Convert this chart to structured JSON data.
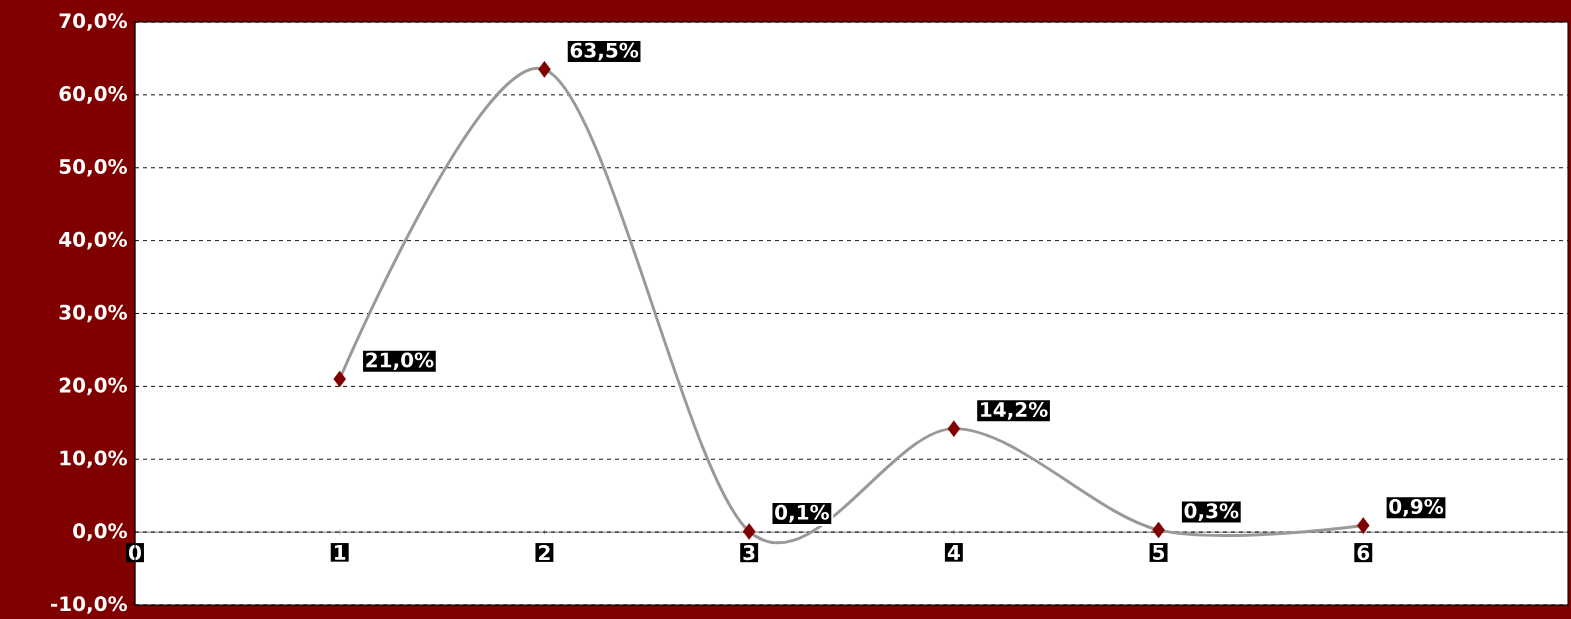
{
  "chart_data": {
    "type": "line",
    "x": [
      1,
      2,
      3,
      4,
      5,
      6
    ],
    "series": [
      {
        "color": "#999999",
        "colors": [
          "#800000",
          "#800000",
          "#800000",
          "#800000",
          "#800000",
          "#800000"
        ],
        "values": [
          21.0,
          63.5,
          0.1,
          14.2,
          0.3,
          0.9
        ],
        "value_labels": [
          "21,0%",
          "63,5%",
          "0,1%",
          "14,2%",
          "0,3%",
          "0,9%"
        ]
      }
    ],
    "xlim": [
      0,
      7
    ],
    "xticks": [
      0,
      1,
      2,
      3,
      4,
      5,
      6
    ],
    "ylim": [
      -10,
      70
    ],
    "yticks": [
      {
        "value": -10,
        "label": "-10,0%"
      },
      {
        "value": 0,
        "label": "0,0%"
      },
      {
        "value": 10,
        "label": "10,0%"
      },
      {
        "value": 20,
        "label": "20,0%"
      },
      {
        "value": 30,
        "label": "30,0%"
      },
      {
        "value": 40,
        "label": "40,0%"
      },
      {
        "value": 50,
        "label": "50,0%"
      },
      {
        "value": 60,
        "label": "60,0%"
      },
      {
        "value": 70,
        "label": "70,0%"
      }
    ],
    "grid": "y",
    "marker": "diamond"
  }
}
